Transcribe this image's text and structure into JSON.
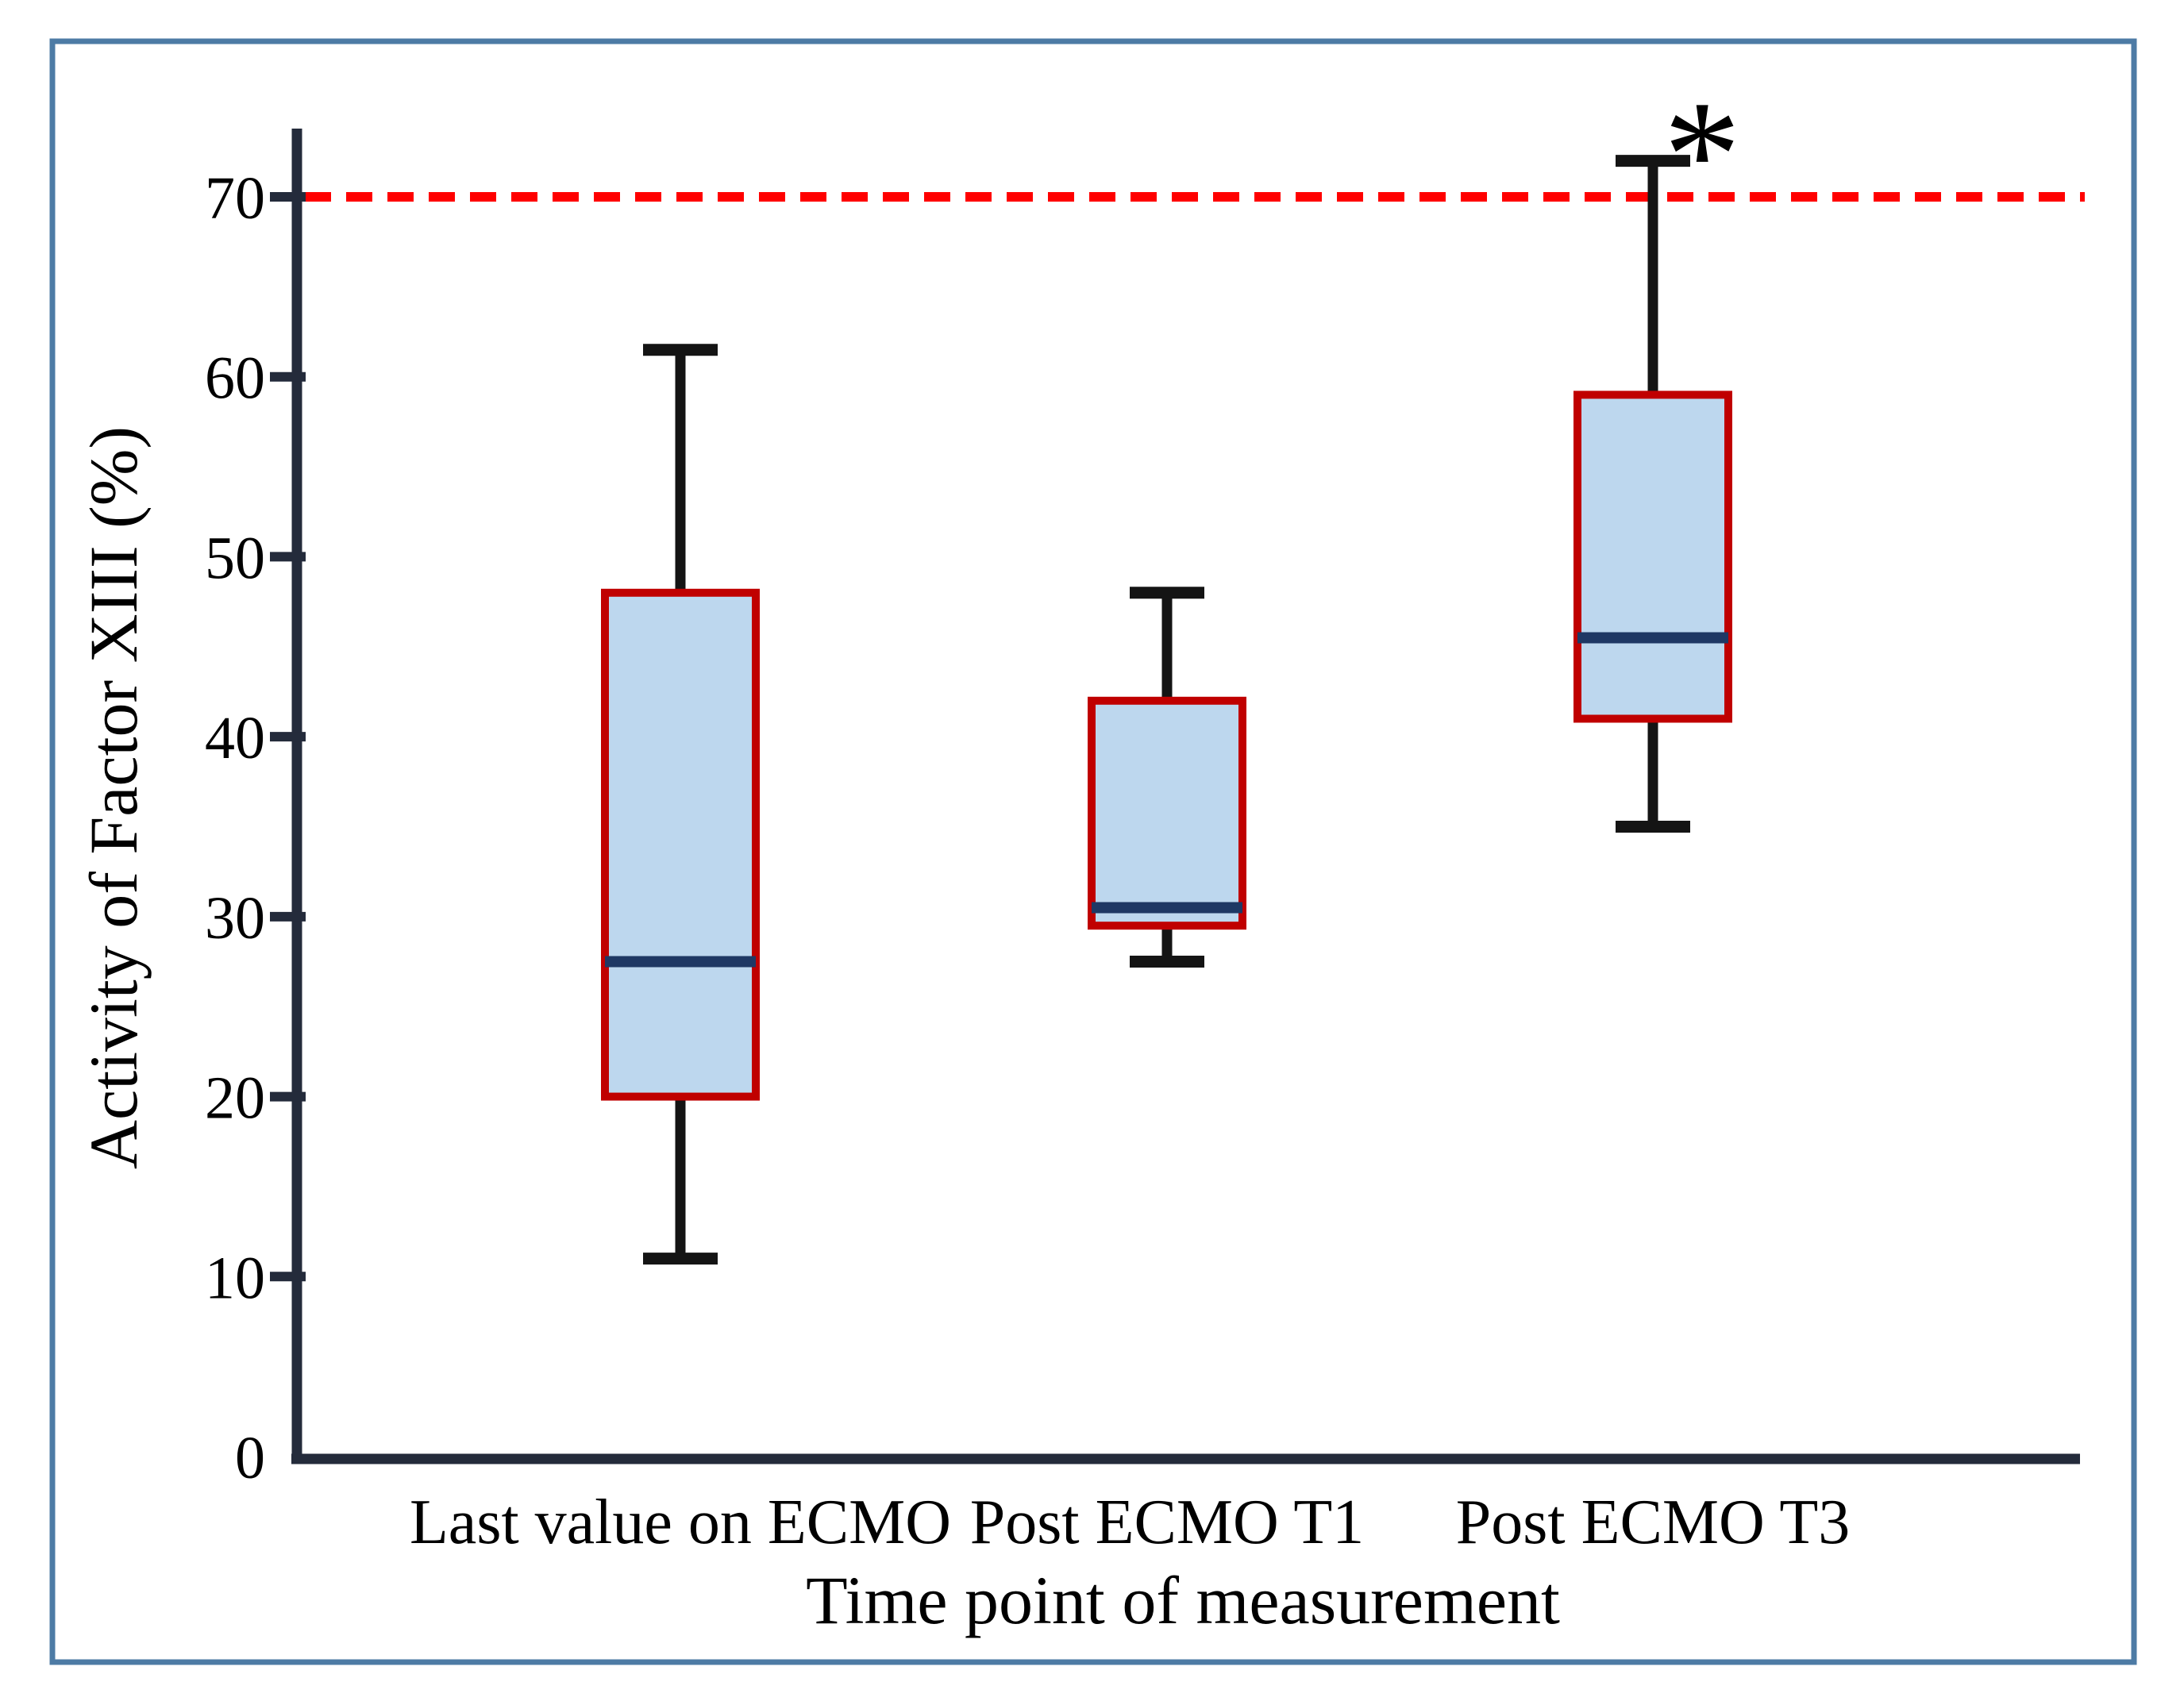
{
  "chart_data": {
    "type": "box",
    "title": "",
    "xlabel": "Time point of measurement",
    "ylabel": "Activity of Factor XIII (%)",
    "categories": [
      "Last value on ECMO",
      "Post ECMO T1",
      "Post ECMO T3"
    ],
    "series": [
      {
        "name": "Last value on ECMO",
        "min": 11,
        "q1": 20,
        "median": 27.5,
        "q3": 48,
        "max": 61.5
      },
      {
        "name": "Post ECMO T1",
        "min": 27.5,
        "q1": 29.5,
        "median": 30.5,
        "q3": 42,
        "max": 48
      },
      {
        "name": "Post ECMO T3",
        "min": 35,
        "q1": 41,
        "median": 45.5,
        "q3": 59,
        "max": 72
      }
    ],
    "ylim": [
      0,
      74
    ],
    "yticks": [
      0,
      10,
      20,
      30,
      40,
      50,
      60,
      70
    ],
    "reference_line": {
      "value": 70,
      "style": "dashed"
    },
    "annotations": [
      {
        "text": "*",
        "category_index": 2
      }
    ],
    "grid": false,
    "legend": false
  },
  "colors": {
    "box_fill": "#BDD7EE",
    "box_border": "#C00000",
    "median": "#1F3864",
    "whisker": "#141414",
    "axis": "#242B3B",
    "text": "#000000",
    "reference": "#FF0000",
    "frame": "#4D7BA5",
    "background": "#FFFFFF"
  }
}
